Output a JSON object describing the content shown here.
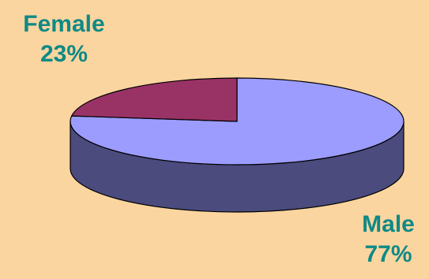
{
  "chart_data": {
    "type": "pie",
    "three_d": true,
    "slices": [
      {
        "label": "Male",
        "value": 77,
        "value_label": "77%",
        "color": "#9C9CFF",
        "side_color": "#4B4B7E"
      },
      {
        "label": "Female",
        "value": 23,
        "value_label": "23%",
        "color": "#993366",
        "side_color": "#5E1F3F"
      }
    ]
  },
  "colors": {
    "background": "#FBD59F",
    "label_text": "#0E8A86",
    "outline": "#000000"
  }
}
